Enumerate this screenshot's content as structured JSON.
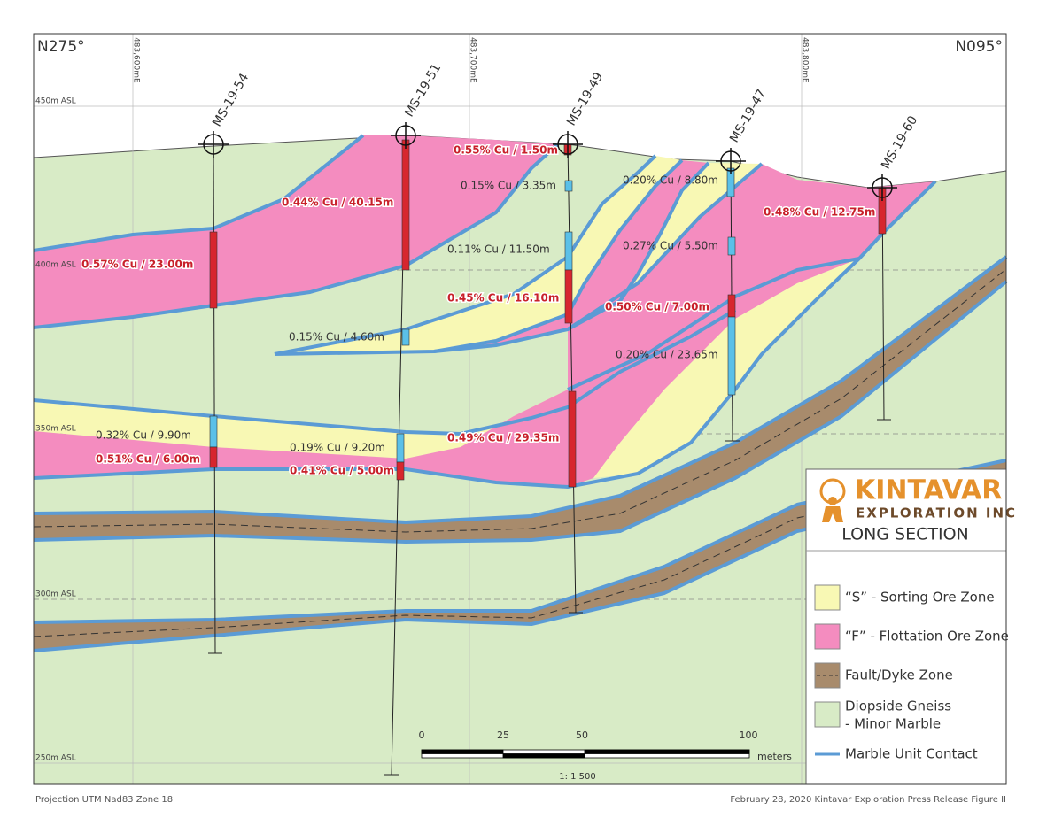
{
  "header": {
    "left": "N275°",
    "right": "N095°"
  },
  "grid_labels": [
    "483,600mE",
    "483,700mE",
    "483,800mE"
  ],
  "elevation_labels": [
    "450m ASL",
    "400m ASL",
    "350m ASL",
    "300m ASL",
    "250m ASL"
  ],
  "holes": [
    {
      "name": "MS-19-54"
    },
    {
      "name": "MS-19-51"
    },
    {
      "name": "MS-19-49"
    },
    {
      "name": "MS-19-47"
    },
    {
      "name": "MS-19-60"
    }
  ],
  "intercepts": [
    "0.55% Cu / 1.50m",
    "0.15% Cu / 3.35m",
    "0.44% Cu / 40.15m",
    "0.57% Cu / 23.00m",
    "0.11% Cu / 11.50m",
    "0.45% Cu / 16.10m",
    "0.15% Cu / 4.60m",
    "0.20% Cu / 8.80m",
    "0.27% Cu / 5.50m",
    "0.50% Cu / 7.00m",
    "0.48% Cu / 12.75m",
    "0.20% Cu / 23.65m",
    "0.32% Cu / 9.90m",
    "0.51% Cu / 6.00m",
    "0.19% Cu / 9.20m",
    "0.41% Cu / 5.00m",
    "0.49% Cu / 29.35m"
  ],
  "legend": {
    "company": "KINTAVAR",
    "subtitle": "EXPLORATION INC",
    "title": "LONG SECTION",
    "items": [
      "“S” - Sorting Ore Zone",
      "“F” - Flottation Ore Zone",
      "Fault/Dyke Zone",
      "Diopside Gneiss",
      "- Minor Marble",
      "Marble Unit Contact"
    ]
  },
  "scale": {
    "ticks": [
      "0",
      "25",
      "50",
      "100"
    ],
    "unit": "meters",
    "ratio": "1: 1 500"
  },
  "footer": {
    "left": "Projection UTM Nad83 Zone 18",
    "right": "February 28, 2020 Kintavar Exploration Press Release Figure II"
  }
}
